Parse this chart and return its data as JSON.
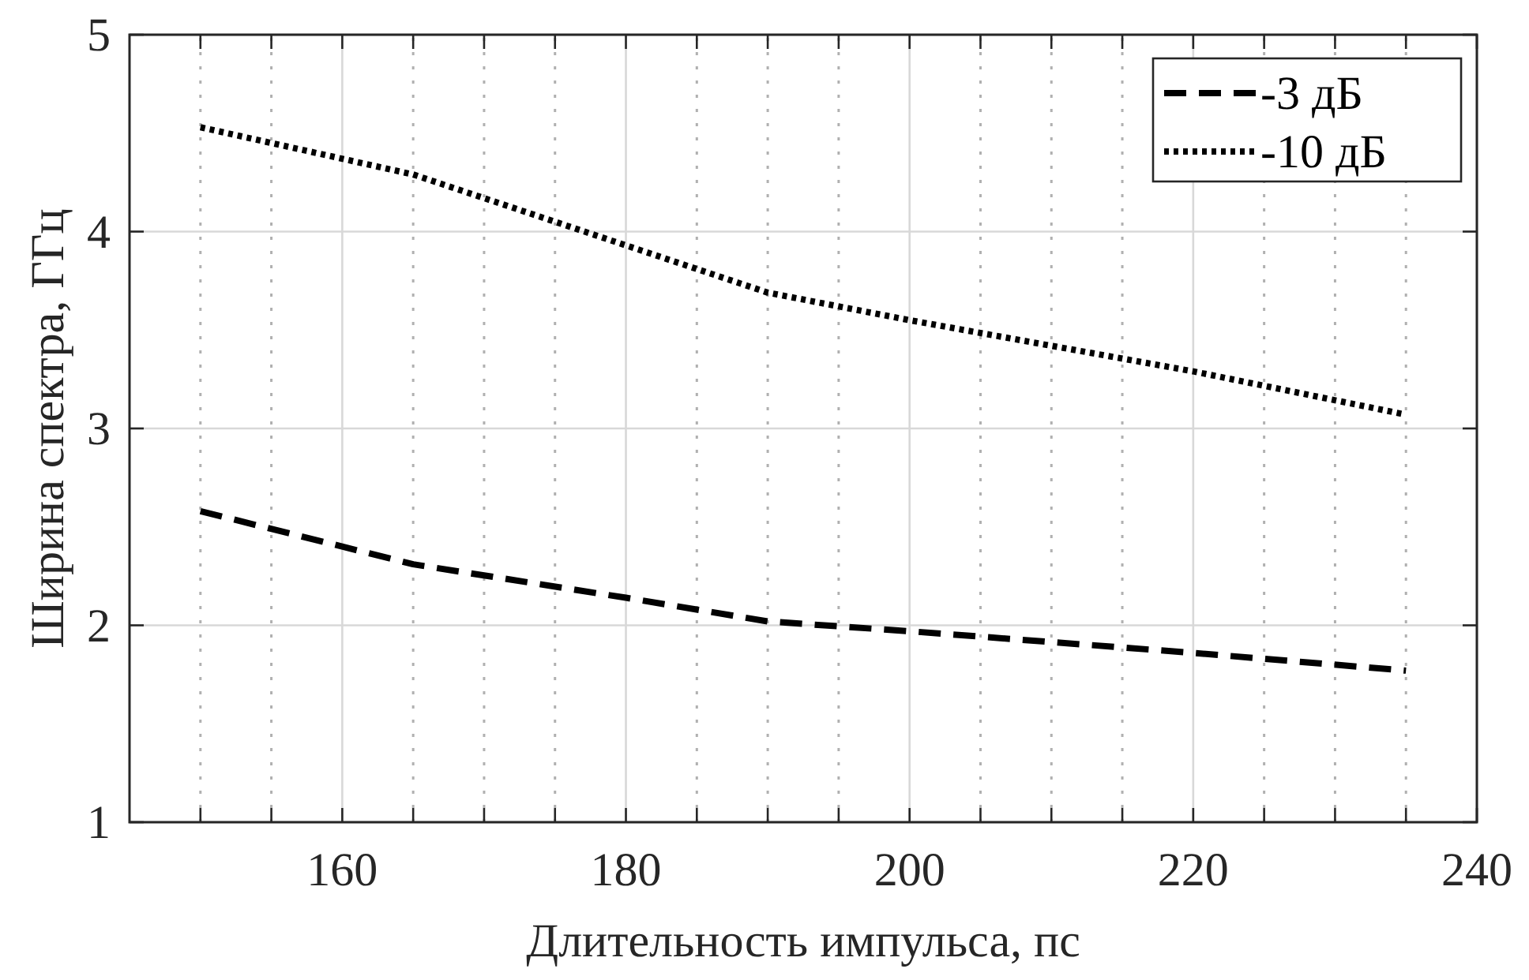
{
  "chart_data": {
    "type": "line",
    "xlabel": "Длительность импульса, пс",
    "ylabel": "Ширина спектра, ГГц",
    "xlim": [
      145,
      240
    ],
    "ylim": [
      1,
      5
    ],
    "xticks": [
      {
        "value": 150,
        "label": null
      },
      {
        "value": 155,
        "label": null
      },
      160,
      {
        "value": 165,
        "label": null
      },
      {
        "value": 170,
        "label": null
      },
      {
        "value": 175,
        "label": null
      },
      180,
      {
        "value": 185,
        "label": null
      },
      {
        "value": 190,
        "label": null
      },
      {
        "value": 195,
        "label": null
      },
      200,
      {
        "value": 205,
        "label": null
      },
      {
        "value": 210,
        "label": null
      },
      {
        "value": 215,
        "label": null
      },
      220,
      {
        "value": 225,
        "label": null
      },
      {
        "value": 230,
        "label": null
      },
      {
        "value": 235,
        "label": null
      },
      240
    ],
    "yticks": [
      1,
      2,
      3,
      4,
      5
    ],
    "grid": true,
    "legend": "top right",
    "marker": "none",
    "series": [
      {
        "name": "-3 дБ",
        "color": "#000000",
        "line_style": "dashed",
        "x": [
          150,
          165,
          180,
          190,
          200,
          220,
          235
        ],
        "values": [
          2.58,
          2.31,
          2.14,
          2.02,
          1.97,
          1.86,
          1.77
        ]
      },
      {
        "name": "-10 дБ",
        "color": "#000000",
        "line_style": "dotted",
        "x": [
          150,
          165,
          180,
          190,
          200,
          220,
          235
        ],
        "values": [
          4.53,
          4.29,
          3.93,
          3.69,
          3.55,
          3.29,
          3.07
        ]
      }
    ]
  }
}
